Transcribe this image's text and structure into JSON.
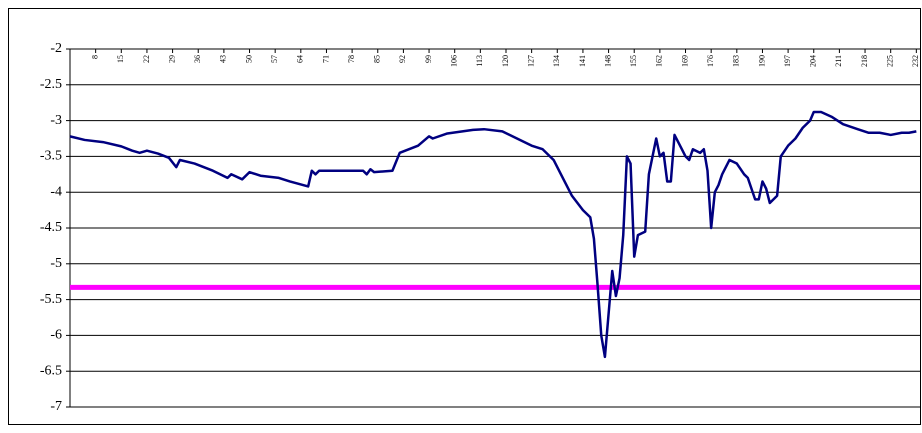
{
  "chart_data": {
    "type": "line",
    "x": [
      1,
      5,
      10,
      15,
      18,
      20,
      22,
      25,
      28,
      30,
      31,
      35,
      40,
      44,
      45,
      48,
      50,
      53,
      58,
      61,
      66,
      67,
      68,
      69,
      81,
      82,
      83,
      84,
      89,
      91,
      96,
      99,
      100,
      104,
      111,
      114,
      119,
      123,
      127,
      130,
      133,
      135,
      138,
      141,
      143,
      144,
      145,
      146,
      147,
      148,
      149,
      150,
      151,
      152,
      153,
      154,
      155,
      156,
      158,
      159,
      160,
      161,
      162,
      163,
      164,
      165,
      166,
      167,
      168,
      169,
      170,
      171,
      173,
      174,
      175,
      176,
      177,
      178,
      179,
      181,
      183,
      185,
      186,
      187,
      188,
      189,
      190,
      191,
      192,
      193,
      194,
      195,
      197,
      199,
      201,
      203,
      204,
      206,
      209,
      212,
      216,
      219,
      222,
      225,
      228,
      230,
      232
    ],
    "series": [
      {
        "color": "#000080",
        "values": [
          -3.22,
          -3.27,
          -3.3,
          -3.36,
          -3.42,
          -3.45,
          -3.42,
          -3.46,
          -3.52,
          -3.65,
          -3.55,
          -3.6,
          -3.7,
          -3.8,
          -3.75,
          -3.82,
          -3.72,
          -3.77,
          -3.8,
          -3.85,
          -3.92,
          -3.7,
          -3.75,
          -3.7,
          -3.7,
          -3.75,
          -3.68,
          -3.72,
          -3.7,
          -3.45,
          -3.35,
          -3.22,
          -3.25,
          -3.18,
          -3.13,
          -3.12,
          -3.15,
          -3.25,
          -3.35,
          -3.4,
          -3.55,
          -3.75,
          -4.05,
          -4.25,
          -4.35,
          -4.65,
          -5.3,
          -6.0,
          -6.3,
          -5.7,
          -5.1,
          -5.45,
          -5.2,
          -4.6,
          -3.5,
          -3.6,
          -4.9,
          -4.6,
          -4.55,
          -3.75,
          -3.5,
          -3.25,
          -3.5,
          -3.45,
          -3.85,
          -3.85,
          -3.2,
          -3.3,
          -3.4,
          -3.5,
          -3.55,
          -3.4,
          -3.45,
          -3.4,
          -3.7,
          -4.5,
          -4.0,
          -3.9,
          -3.75,
          -3.55,
          -3.6,
          -3.75,
          -3.8,
          -3.95,
          -4.1,
          -4.1,
          -3.85,
          -3.95,
          -4.15,
          -4.1,
          -4.05,
          -3.5,
          -3.35,
          -3.25,
          -3.1,
          -3.0,
          -2.88,
          -2.88,
          -2.95,
          -3.05,
          -3.12,
          -3.17,
          -3.17,
          -3.2,
          -3.17,
          -3.17,
          -3.15
        ]
      }
    ],
    "hlines": [
      {
        "value": -5.33,
        "color": "#ff00ff"
      }
    ],
    "xlim": [
      1,
      233
    ],
    "xticks": [
      8,
      15,
      22,
      29,
      36,
      43,
      50,
      57,
      64,
      71,
      78,
      85,
      92,
      99,
      106,
      113,
      120,
      127,
      134,
      141,
      148,
      155,
      162,
      169,
      176,
      183,
      190,
      197,
      204,
      211,
      218,
      225,
      232
    ],
    "ylim": [
      -7,
      -2
    ],
    "yticks": [
      -2,
      -2.5,
      -3,
      -3.5,
      -4,
      -4.5,
      -5,
      -5.5,
      -6,
      -6.5,
      -7
    ],
    "grid": true
  }
}
